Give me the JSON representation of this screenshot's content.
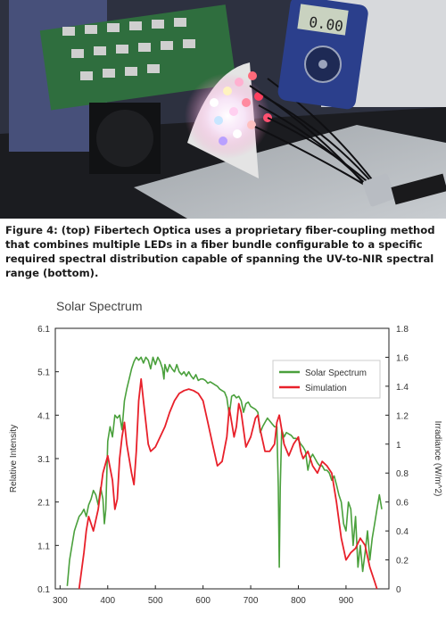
{
  "figure": {
    "caption": "Figure 4: (top) Fibertech Optica uses a proprietary fiber-coupling method that combines multiple LEDs in a fiber bundle configurable to a specific required spectral distribution capable of spanning the UV-to-NIR spectral range (bottom).",
    "multimeter_reading": "0.00"
  },
  "chart_data": {
    "type": "line",
    "title": "Solar Spectrum",
    "ylabel": "Relative Intensity",
    "y2label": "Irradiance (W/m^2)",
    "xlim": [
      290,
      990
    ],
    "ylim": [
      0.1,
      6.1
    ],
    "y2lim": [
      0,
      1.8
    ],
    "xticks": [
      "300",
      "400",
      "500",
      "600",
      "700",
      "800",
      "900"
    ],
    "yticks": [
      "6.1",
      "5.1",
      "4.1",
      "3.1",
      "2.1",
      "1.1",
      "0.1"
    ],
    "y2ticks": [
      "1.8",
      "1.6",
      "1.4",
      "1.2",
      "1",
      "0.8",
      "0.6",
      "0.4",
      "0.2",
      "0"
    ],
    "grid": false,
    "legend_position": "top-right",
    "colors": {
      "solar": "#4aa03c",
      "simulation": "#e8202a"
    },
    "series": [
      {
        "name": "Solar Spectrum",
        "axis": "right",
        "points": [
          [
            315,
            0.02
          ],
          [
            320,
            0.2
          ],
          [
            325,
            0.3
          ],
          [
            330,
            0.4
          ],
          [
            335,
            0.45
          ],
          [
            340,
            0.5
          ],
          [
            345,
            0.52
          ],
          [
            350,
            0.55
          ],
          [
            355,
            0.5
          ],
          [
            360,
            0.58
          ],
          [
            365,
            0.62
          ],
          [
            370,
            0.68
          ],
          [
            375,
            0.65
          ],
          [
            380,
            0.58
          ],
          [
            385,
            0.7
          ],
          [
            390,
            0.62
          ],
          [
            393,
            0.45
          ],
          [
            396,
            0.55
          ],
          [
            400,
            1.02
          ],
          [
            405,
            1.12
          ],
          [
            410,
            1.05
          ],
          [
            415,
            1.2
          ],
          [
            420,
            1.18
          ],
          [
            425,
            1.2
          ],
          [
            430,
            1.1
          ],
          [
            435,
            1.3
          ],
          [
            440,
            1.38
          ],
          [
            445,
            1.45
          ],
          [
            450,
            1.52
          ],
          [
            455,
            1.57
          ],
          [
            460,
            1.6
          ],
          [
            465,
            1.58
          ],
          [
            470,
            1.6
          ],
          [
            475,
            1.56
          ],
          [
            480,
            1.6
          ],
          [
            485,
            1.58
          ],
          [
            490,
            1.52
          ],
          [
            495,
            1.6
          ],
          [
            500,
            1.55
          ],
          [
            505,
            1.6
          ],
          [
            510,
            1.57
          ],
          [
            515,
            1.52
          ],
          [
            518,
            1.45
          ],
          [
            520,
            1.55
          ],
          [
            525,
            1.5
          ],
          [
            530,
            1.55
          ],
          [
            535,
            1.52
          ],
          [
            540,
            1.5
          ],
          [
            545,
            1.55
          ],
          [
            550,
            1.5
          ],
          [
            555,
            1.48
          ],
          [
            560,
            1.5
          ],
          [
            565,
            1.47
          ],
          [
            570,
            1.5
          ],
          [
            575,
            1.47
          ],
          [
            580,
            1.45
          ],
          [
            585,
            1.48
          ],
          [
            590,
            1.44
          ],
          [
            595,
            1.45
          ],
          [
            600,
            1.45
          ],
          [
            605,
            1.44
          ],
          [
            610,
            1.42
          ],
          [
            615,
            1.43
          ],
          [
            620,
            1.42
          ],
          [
            625,
            1.41
          ],
          [
            630,
            1.4
          ],
          [
            635,
            1.38
          ],
          [
            640,
            1.37
          ],
          [
            645,
            1.36
          ],
          [
            650,
            1.32
          ],
          [
            655,
            1.2
          ],
          [
            660,
            1.33
          ],
          [
            665,
            1.34
          ],
          [
            670,
            1.32
          ],
          [
            675,
            1.33
          ],
          [
            680,
            1.3
          ],
          [
            685,
            1.22
          ],
          [
            690,
            1.28
          ],
          [
            695,
            1.29
          ],
          [
            700,
            1.26
          ],
          [
            705,
            1.25
          ],
          [
            710,
            1.24
          ],
          [
            715,
            1.22
          ],
          [
            720,
            1.08
          ],
          [
            725,
            1.12
          ],
          [
            730,
            1.15
          ],
          [
            735,
            1.18
          ],
          [
            740,
            1.16
          ],
          [
            745,
            1.14
          ],
          [
            750,
            1.12
          ],
          [
            755,
            1.12
          ],
          [
            758,
            0.7
          ],
          [
            760,
            0.15
          ],
          [
            762,
            0.7
          ],
          [
            765,
            1.1
          ],
          [
            770,
            1.05
          ],
          [
            775,
            1.08
          ],
          [
            780,
            1.07
          ],
          [
            785,
            1.06
          ],
          [
            790,
            1.04
          ],
          [
            795,
            1.04
          ],
          [
            800,
            1.03
          ],
          [
            805,
            1.0
          ],
          [
            810,
            0.98
          ],
          [
            815,
            0.95
          ],
          [
            820,
            0.82
          ],
          [
            825,
            0.9
          ],
          [
            830,
            0.93
          ],
          [
            835,
            0.9
          ],
          [
            840,
            0.87
          ],
          [
            845,
            0.85
          ],
          [
            850,
            0.85
          ],
          [
            855,
            0.82
          ],
          [
            860,
            0.82
          ],
          [
            865,
            0.8
          ],
          [
            870,
            0.75
          ],
          [
            875,
            0.78
          ],
          [
            880,
            0.72
          ],
          [
            885,
            0.65
          ],
          [
            890,
            0.6
          ],
          [
            895,
            0.45
          ],
          [
            900,
            0.4
          ],
          [
            905,
            0.6
          ],
          [
            910,
            0.55
          ],
          [
            915,
            0.3
          ],
          [
            920,
            0.5
          ],
          [
            925,
            0.15
          ],
          [
            930,
            0.3
          ],
          [
            935,
            0.12
          ],
          [
            940,
            0.25
          ],
          [
            945,
            0.4
          ],
          [
            950,
            0.2
          ],
          [
            955,
            0.35
          ],
          [
            960,
            0.45
          ],
          [
            965,
            0.55
          ],
          [
            970,
            0.65
          ],
          [
            975,
            0.55
          ]
        ]
      },
      {
        "name": "Simulation",
        "axis": "right",
        "points": [
          [
            340,
            0.0
          ],
          [
            350,
            0.25
          ],
          [
            355,
            0.4
          ],
          [
            360,
            0.5
          ],
          [
            365,
            0.45
          ],
          [
            370,
            0.4
          ],
          [
            380,
            0.55
          ],
          [
            390,
            0.8
          ],
          [
            400,
            0.92
          ],
          [
            410,
            0.75
          ],
          [
            415,
            0.55
          ],
          [
            420,
            0.62
          ],
          [
            425,
            0.9
          ],
          [
            430,
            1.05
          ],
          [
            435,
            1.15
          ],
          [
            440,
            1.0
          ],
          [
            445,
            0.9
          ],
          [
            450,
            0.8
          ],
          [
            455,
            0.72
          ],
          [
            460,
            0.95
          ],
          [
            465,
            1.3
          ],
          [
            470,
            1.45
          ],
          [
            475,
            1.3
          ],
          [
            480,
            1.15
          ],
          [
            485,
            1.0
          ],
          [
            490,
            0.95
          ],
          [
            500,
            0.98
          ],
          [
            510,
            1.05
          ],
          [
            520,
            1.12
          ],
          [
            530,
            1.22
          ],
          [
            540,
            1.3
          ],
          [
            550,
            1.35
          ],
          [
            560,
            1.37
          ],
          [
            570,
            1.38
          ],
          [
            580,
            1.37
          ],
          [
            590,
            1.35
          ],
          [
            600,
            1.3
          ],
          [
            610,
            1.15
          ],
          [
            620,
            1.0
          ],
          [
            630,
            0.85
          ],
          [
            640,
            0.88
          ],
          [
            650,
            1.05
          ],
          [
            655,
            1.25
          ],
          [
            660,
            1.15
          ],
          [
            665,
            1.05
          ],
          [
            670,
            1.12
          ],
          [
            675,
            1.28
          ],
          [
            680,
            1.22
          ],
          [
            690,
            0.98
          ],
          [
            700,
            1.05
          ],
          [
            710,
            1.18
          ],
          [
            715,
            1.2
          ],
          [
            720,
            1.1
          ],
          [
            730,
            0.95
          ],
          [
            740,
            0.95
          ],
          [
            750,
            1.0
          ],
          [
            755,
            1.15
          ],
          [
            760,
            1.2
          ],
          [
            770,
            1.0
          ],
          [
            780,
            0.92
          ],
          [
            790,
            1.0
          ],
          [
            800,
            1.05
          ],
          [
            805,
            0.95
          ],
          [
            810,
            0.9
          ],
          [
            820,
            0.95
          ],
          [
            830,
            0.85
          ],
          [
            840,
            0.8
          ],
          [
            850,
            0.88
          ],
          [
            860,
            0.85
          ],
          [
            870,
            0.8
          ],
          [
            880,
            0.6
          ],
          [
            890,
            0.35
          ],
          [
            900,
            0.2
          ],
          [
            910,
            0.25
          ],
          [
            920,
            0.28
          ],
          [
            930,
            0.35
          ],
          [
            940,
            0.3
          ],
          [
            950,
            0.15
          ],
          [
            960,
            0.05
          ],
          [
            965,
            0.0
          ]
        ]
      }
    ]
  }
}
